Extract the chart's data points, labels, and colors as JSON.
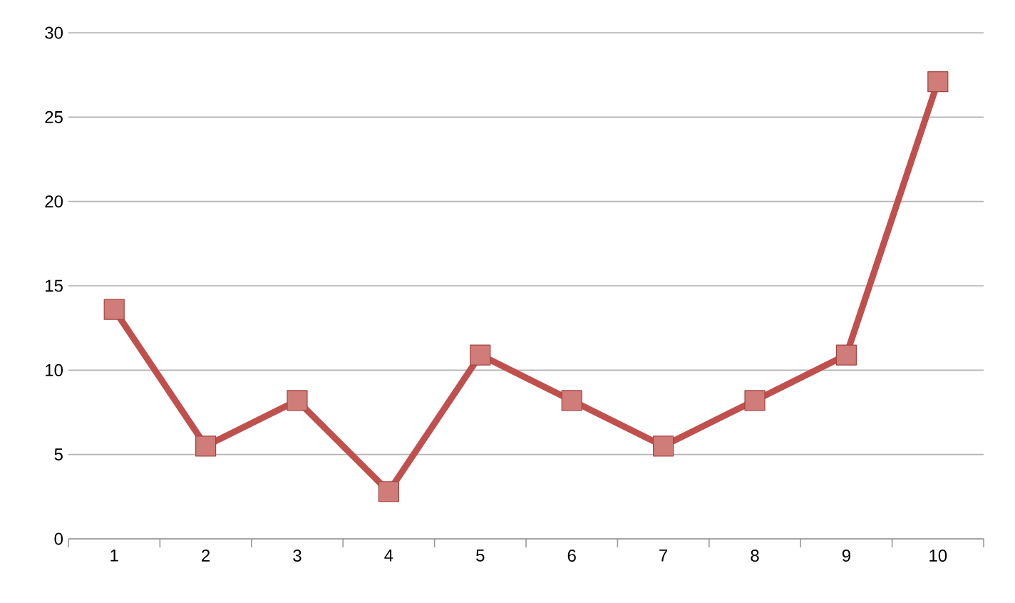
{
  "chart_data": {
    "type": "line",
    "categories": [
      "1",
      "2",
      "3",
      "4",
      "5",
      "6",
      "7",
      "8",
      "9",
      "10"
    ],
    "series": [
      {
        "color": "#c0504d",
        "values": [
          13.6,
          5.5,
          8.2,
          2.8,
          10.9,
          8.2,
          5.5,
          8.2,
          10.9,
          27.1
        ]
      }
    ],
    "ylim": [
      0,
      30
    ],
    "yticks": [
      0,
      5,
      10,
      15,
      20,
      25,
      30
    ],
    "grid": "y",
    "marker": "square",
    "line_style": "solid"
  }
}
